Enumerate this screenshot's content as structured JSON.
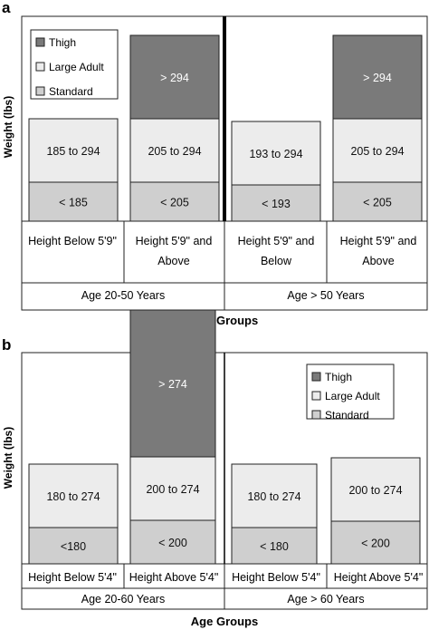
{
  "colors": {
    "thigh": "#7a7a7a",
    "large_adult": "#ececec",
    "standard": "#cfcfcf",
    "border": "#222222"
  },
  "chart_data": [
    {
      "panel_label": "a",
      "type": "bar",
      "stacked": true,
      "ylabel": "Weight (lbs)",
      "xlabel": "Age Groups",
      "legend": {
        "placement": "top-left",
        "entries": [
          {
            "key": "thigh",
            "label": "Thigh"
          },
          {
            "key": "large_adult",
            "label": "Large Adult"
          },
          {
            "key": "standard",
            "label": "Standard"
          }
        ]
      },
      "groups": [
        {
          "label": "Age 20-50 Years",
          "categories": [
            {
              "label_lines": [
                "Height Below 5'9\""
              ],
              "segments": [
                {
                  "key": "standard",
                  "label": "< 185"
                },
                {
                  "key": "large_adult",
                  "label": "185 to 294"
                }
              ]
            },
            {
              "label_lines": [
                "Height 5'9\" and",
                "Above"
              ],
              "segments": [
                {
                  "key": "standard",
                  "label": "< 205"
                },
                {
                  "key": "large_adult",
                  "label": "205 to 294"
                },
                {
                  "key": "thigh",
                  "label": "> 294"
                }
              ]
            }
          ]
        },
        {
          "label": "Age > 50 Years",
          "categories": [
            {
              "label_lines": [
                "Height 5'9\" and",
                "Below"
              ],
              "segments": [
                {
                  "key": "standard",
                  "label": "< 193"
                },
                {
                  "key": "large_adult",
                  "label": "193 to 294"
                }
              ]
            },
            {
              "label_lines": [
                "Height 5'9\" and",
                "Above"
              ],
              "segments": [
                {
                  "key": "standard",
                  "label": "< 205"
                },
                {
                  "key": "large_adult",
                  "label": "205 to 294"
                },
                {
                  "key": "thigh",
                  "label": "> 294"
                }
              ]
            }
          ]
        }
      ]
    },
    {
      "panel_label": "b",
      "type": "bar",
      "stacked": true,
      "ylabel": "Weight (lbs)",
      "xlabel": "Age Groups",
      "legend": {
        "placement": "top-right",
        "entries": [
          {
            "key": "thigh",
            "label": "Thigh"
          },
          {
            "key": "large_adult",
            "label": "Large Adult"
          },
          {
            "key": "standard",
            "label": "Standard"
          }
        ]
      },
      "groups": [
        {
          "label": "Age 20-60 Years",
          "categories": [
            {
              "label_lines": [
                "Height Below 5'4\""
              ],
              "segments": [
                {
                  "key": "standard",
                  "label": "<180"
                },
                {
                  "key": "large_adult",
                  "label": "180 to 274"
                }
              ]
            },
            {
              "label_lines": [
                "Height Above 5'4\""
              ],
              "segments": [
                {
                  "key": "standard",
                  "label": "< 200"
                },
                {
                  "key": "large_adult",
                  "label": "200 to 274"
                },
                {
                  "key": "thigh",
                  "label": "> 274"
                }
              ]
            }
          ]
        },
        {
          "label": "Age > 60 Years",
          "categories": [
            {
              "label_lines": [
                "Height Below 5'4\""
              ],
              "segments": [
                {
                  "key": "standard",
                  "label": "< 180"
                },
                {
                  "key": "large_adult",
                  "label": "180 to 274"
                }
              ]
            },
            {
              "label_lines": [
                "Height Above 5'4\""
              ],
              "segments": [
                {
                  "key": "standard",
                  "label": "< 200"
                },
                {
                  "key": "large_adult",
                  "label": "200 to 274"
                }
              ]
            }
          ]
        }
      ]
    }
  ]
}
